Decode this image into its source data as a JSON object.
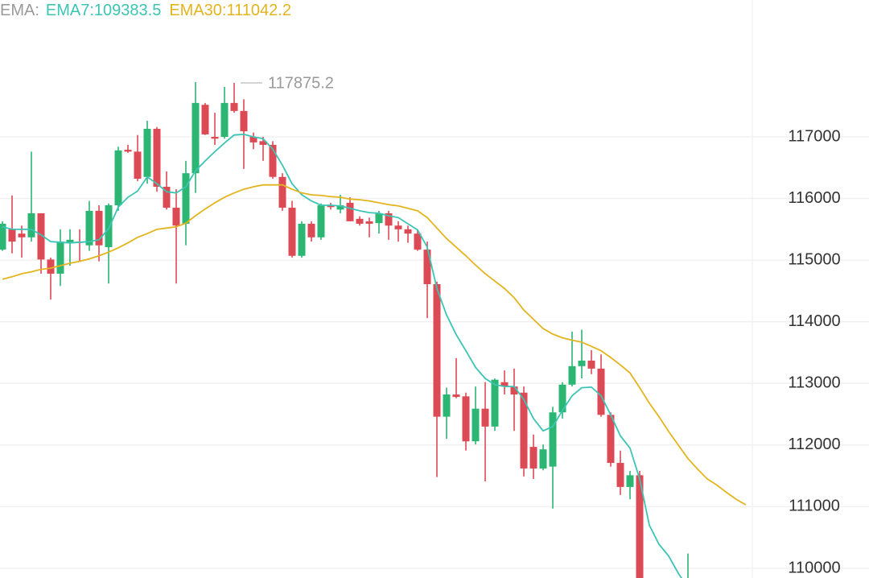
{
  "chart_data": {
    "type": "candlestick",
    "legend_title": "EMA:",
    "ylim": [
      109843,
      119220
    ],
    "yticks": [
      110000,
      111000,
      112000,
      113000,
      114000,
      115000,
      116000,
      117000
    ],
    "grid": true,
    "up_color": "#2bb673",
    "down_color": "#dc4a55",
    "max_label_index": 24,
    "candles": [
      [
        115170,
        115630,
        115150,
        115590
      ],
      [
        115500,
        116050,
        115110,
        115300
      ],
      [
        115430,
        115560,
        115040,
        115370
      ],
      [
        115370,
        116760,
        115300,
        115760
      ],
      [
        115760,
        115760,
        114780,
        115010
      ],
      [
        115010,
        115040,
        114360,
        114780
      ],
      [
        114780,
        115500,
        114580,
        115300
      ],
      [
        115280,
        115500,
        114910,
        115330
      ],
      [
        115300,
        115500,
        114980,
        115280
      ],
      [
        115240,
        115960,
        115150,
        115800
      ],
      [
        115800,
        115890,
        114980,
        115240
      ],
      [
        115210,
        115920,
        114620,
        115890
      ],
      [
        115890,
        116840,
        115800,
        116780
      ],
      [
        116790,
        116870,
        116740,
        116760
      ],
      [
        116760,
        117030,
        116280,
        116320
      ],
      [
        116350,
        117260,
        116240,
        117130
      ],
      [
        117130,
        117160,
        116110,
        116190
      ],
      [
        116190,
        116440,
        115820,
        115850
      ],
      [
        115850,
        116150,
        114620,
        115560
      ],
      [
        115590,
        116610,
        115240,
        116410
      ],
      [
        116410,
        117890,
        116090,
        117550
      ],
      [
        117520,
        117550,
        117030,
        117040
      ],
      [
        117000,
        117390,
        116870,
        116970
      ],
      [
        117000,
        117810,
        116970,
        117550
      ],
      [
        117550,
        117875.2,
        117390,
        117420
      ],
      [
        117420,
        117610,
        116480,
        117090
      ],
      [
        117000,
        117070,
        116800,
        116910
      ],
      [
        116930,
        117000,
        116610,
        116870
      ],
      [
        116870,
        116930,
        116320,
        116350
      ],
      [
        116350,
        116410,
        115800,
        115850
      ],
      [
        115850,
        115960,
        115040,
        115070
      ],
      [
        115070,
        115630,
        115040,
        115590
      ],
      [
        115590,
        115630,
        115300,
        115370
      ],
      [
        115370,
        115920,
        115330,
        115890
      ],
      [
        115890,
        115930,
        115820,
        115860
      ],
      [
        115820,
        116060,
        115760,
        115890
      ],
      [
        115930,
        116020,
        115630,
        115630
      ],
      [
        115670,
        115710,
        115560,
        115590
      ],
      [
        115630,
        115690,
        115370,
        115590
      ],
      [
        115600,
        115800,
        115430,
        115760
      ],
      [
        115760,
        115800,
        115330,
        115560
      ],
      [
        115560,
        115630,
        115300,
        115500
      ],
      [
        115500,
        115560,
        115280,
        115430
      ],
      [
        115430,
        115500,
        115150,
        115170
      ],
      [
        115170,
        115300,
        114060,
        114610
      ],
      [
        114610,
        114650,
        111480,
        112460
      ],
      [
        112460,
        112930,
        112100,
        112820
      ],
      [
        112820,
        113410,
        112760,
        112780
      ],
      [
        112790,
        112850,
        111910,
        112060
      ],
      [
        112060,
        112950,
        112010,
        112590
      ],
      [
        112590,
        113020,
        111410,
        112300
      ],
      [
        112300,
        113080,
        112230,
        113060
      ],
      [
        113020,
        113210,
        112820,
        112950
      ],
      [
        112950,
        113240,
        112230,
        112820
      ],
      [
        112850,
        112950,
        111490,
        111620
      ],
      [
        111970,
        112170,
        111450,
        111620
      ],
      [
        111620,
        112010,
        111590,
        111930
      ],
      [
        111650,
        112620,
        110970,
        112530
      ],
      [
        112530,
        113020,
        112430,
        112980
      ],
      [
        112980,
        113840,
        112950,
        113280
      ],
      [
        113280,
        113870,
        113080,
        113370
      ],
      [
        113370,
        113540,
        113150,
        113240
      ],
      [
        113240,
        113470,
        112460,
        112490
      ],
      [
        112490,
        112530,
        111650,
        111710
      ],
      [
        111710,
        111910,
        111190,
        111320
      ],
      [
        111320,
        111580,
        111120,
        111510
      ],
      [
        111510,
        111580,
        109600,
        109700
      ],
      null,
      null,
      null,
      null,
      [
        109600,
        110240,
        109500,
        109800
      ],
      null,
      null,
      null,
      null,
      null
    ],
    "series": [
      {
        "name": "EMA7:109383.5",
        "color": "#3cc4b4",
        "values": [
          115540,
          115500,
          115500,
          115500,
          115410,
          115300,
          115290,
          115280,
          115290,
          115300,
          115330,
          115510,
          115860,
          116020,
          116120,
          116350,
          116240,
          116110,
          116090,
          116190,
          116450,
          116610,
          116760,
          116900,
          117030,
          117040,
          117000,
          116970,
          116800,
          116540,
          116240,
          116060,
          115960,
          115890,
          115890,
          115880,
          115840,
          115800,
          115770,
          115760,
          115720,
          115690,
          115590,
          115490,
          115210,
          114540,
          114110,
          113790,
          113530,
          113260,
          113080,
          112980,
          112950,
          112950,
          112740,
          112430,
          112230,
          112300,
          112560,
          112800,
          112930,
          112940,
          112800,
          112490,
          112150,
          111950,
          111450,
          110700,
          110390,
          110200,
          109920,
          109690,
          null,
          null,
          null,
          null,
          null,
          null
        ]
      },
      {
        "name": "EMA30:111042.2",
        "color": "#e3b41e",
        "values": [
          114690,
          114730,
          114780,
          114810,
          114850,
          114870,
          114910,
          114950,
          114980,
          115020,
          115070,
          115130,
          115200,
          115280,
          115370,
          115430,
          115500,
          115520,
          115540,
          115600,
          115720,
          115830,
          115930,
          116020,
          116090,
          116150,
          116190,
          116220,
          116220,
          116220,
          116150,
          116090,
          116060,
          116050,
          116030,
          116020,
          115990,
          115980,
          115960,
          115930,
          115900,
          115880,
          115840,
          115800,
          115690,
          115520,
          115350,
          115210,
          115070,
          114920,
          114780,
          114660,
          114540,
          114390,
          114190,
          114040,
          113890,
          113800,
          113740,
          113700,
          113670,
          113600,
          113530,
          113420,
          113300,
          113170,
          112930,
          112680,
          112460,
          112220,
          112000,
          111780,
          111610,
          111450,
          111350,
          111230,
          111120,
          111030
        ]
      }
    ]
  }
}
